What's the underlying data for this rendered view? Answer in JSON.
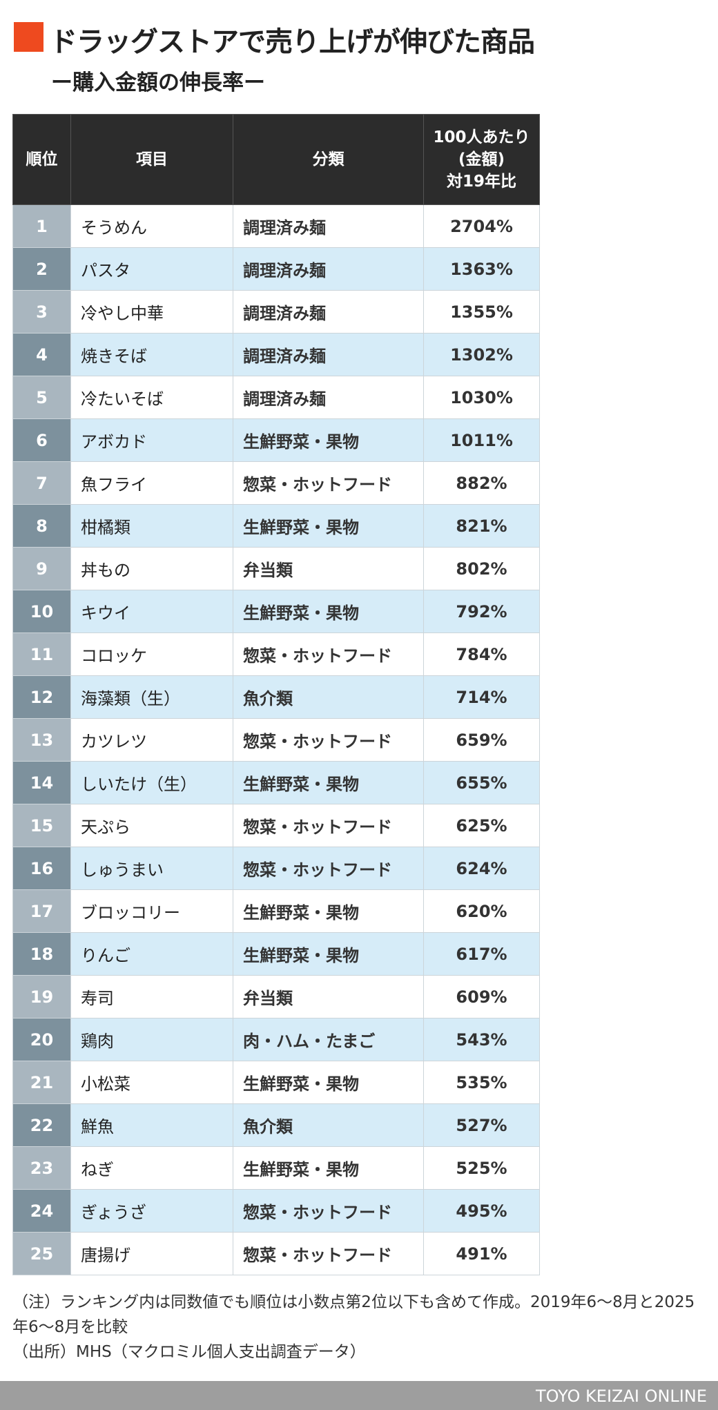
{
  "header": {
    "title": "ドラッグストアで売り上げが伸びた商品",
    "subtitle": "ー購入金額の伸長率ー"
  },
  "table": {
    "columns": [
      "順位",
      "項目",
      "分類",
      [
        "100人あたり",
        "(金額)",
        "対19年比"
      ]
    ],
    "rows": [
      [
        "1",
        "そうめん",
        "調理済み麺",
        "2704%"
      ],
      [
        "2",
        "パスタ",
        "調理済み麺",
        "1363%"
      ],
      [
        "3",
        "冷やし中華",
        "調理済み麺",
        "1355%"
      ],
      [
        "4",
        "焼きそば",
        "調理済み麺",
        "1302%"
      ],
      [
        "5",
        "冷たいそば",
        "調理済み麺",
        "1030%"
      ],
      [
        "6",
        "アボカド",
        "生鮮野菜・果物",
        "1011%"
      ],
      [
        "7",
        "魚フライ",
        "惣菜・ホットフード",
        "882%"
      ],
      [
        "8",
        "柑橘類",
        "生鮮野菜・果物",
        "821%"
      ],
      [
        "9",
        "丼もの",
        "弁当類",
        "802%"
      ],
      [
        "10",
        "キウイ",
        "生鮮野菜・果物",
        "792%"
      ],
      [
        "11",
        "コロッケ",
        "惣菜・ホットフード",
        "784%"
      ],
      [
        "12",
        "海藻類（生）",
        "魚介類",
        "714%"
      ],
      [
        "13",
        "カツレツ",
        "惣菜・ホットフード",
        "659%"
      ],
      [
        "14",
        "しいたけ（生）",
        "生鮮野菜・果物",
        "655%"
      ],
      [
        "15",
        "天ぷら",
        "惣菜・ホットフード",
        "625%"
      ],
      [
        "16",
        "しゅうまい",
        "惣菜・ホットフード",
        "624%"
      ],
      [
        "17",
        "ブロッコリー",
        "生鮮野菜・果物",
        "620%"
      ],
      [
        "18",
        "りんご",
        "生鮮野菜・果物",
        "617%"
      ],
      [
        "19",
        "寿司",
        "弁当類",
        "609%"
      ],
      [
        "20",
        "鶏肉",
        "肉・ハム・たまご",
        "543%"
      ],
      [
        "21",
        "小松菜",
        "生鮮野菜・果物",
        "535%"
      ],
      [
        "22",
        "鮮魚",
        "魚介類",
        "527%"
      ],
      [
        "23",
        "ねぎ",
        "生鮮野菜・果物",
        "525%"
      ],
      [
        "24",
        "ぎょうざ",
        "惣菜・ホットフード",
        "495%"
      ],
      [
        "25",
        "唐揚げ",
        "惣菜・ホットフード",
        "491%"
      ]
    ]
  },
  "notes": [
    "（注）ランキング内は同数値でも順位は小数点第2位以下も含めて作成。2019年6～8月と2025年6～8月を比較",
    "（出所）MHS（マクロミル個人支出調査データ）"
  ],
  "footer": {
    "brand": "TOYO KEIZAI ONLINE"
  }
}
